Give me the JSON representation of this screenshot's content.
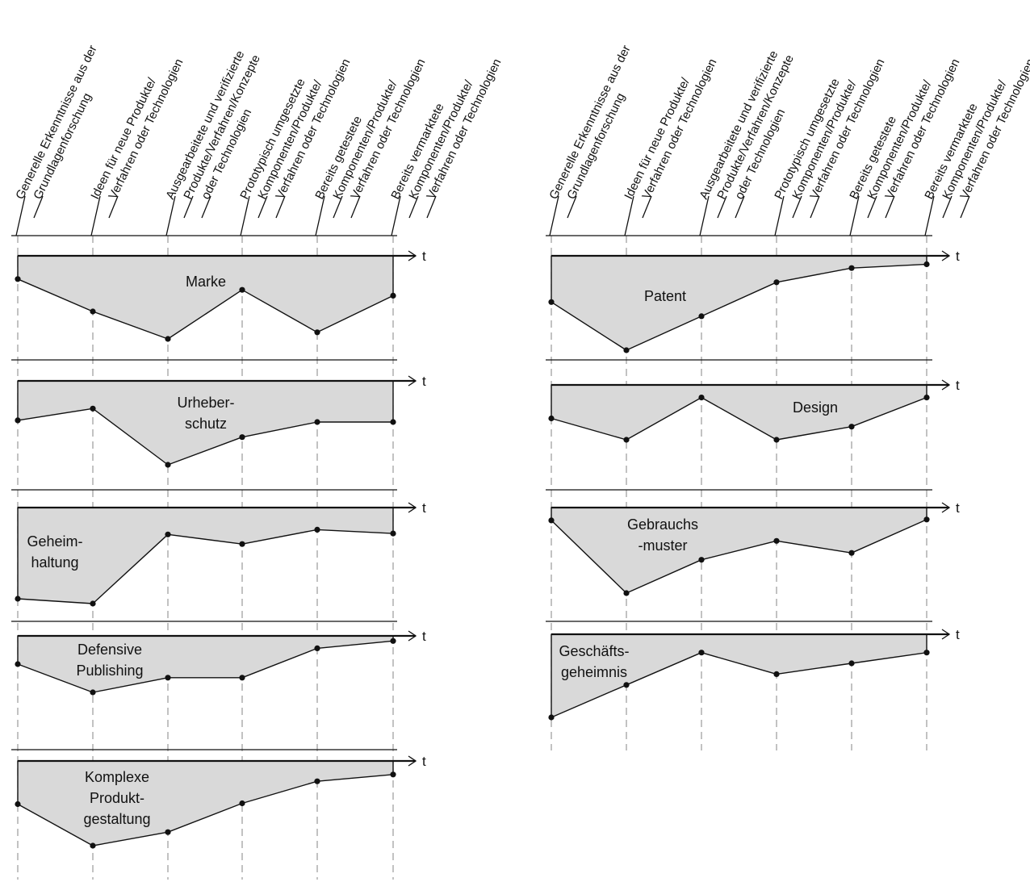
{
  "stages": [
    [
      "Generelle Erkenntnisse aus der",
      "Grundlagenforschung"
    ],
    [
      "Ideen für neue Produkte/",
      "Verfahren oder Technologien"
    ],
    [
      "Ausgearbeitete und verifizierte",
      "Produkte/Verfahren/Konzepte",
      "oder Technologien"
    ],
    [
      "Prototypisch umgesetzte",
      "Komponenten/Produkte/",
      "Verfahren oder Technologien"
    ],
    [
      "Bereits getestete",
      "Komponenten/Produkte/",
      "Verfahren oder Technologien"
    ],
    [
      "Bereits vermarktete",
      "Komponenten/Produkte/",
      "Verfahren oder Technologien"
    ]
  ],
  "axis_label": "t",
  "panels": [
    {
      "id": "marke",
      "column": "left",
      "label": [
        "Marke"
      ],
      "levels": [
        0.28,
        0.67,
        1.0,
        0.41,
        0.92,
        0.48
      ]
    },
    {
      "id": "urheberschutz",
      "column": "left",
      "label": [
        "Urheber-",
        "schutz"
      ],
      "levels": [
        0.47,
        0.33,
        1.0,
        0.67,
        0.49,
        0.49
      ]
    },
    {
      "id": "geheimhaltung",
      "column": "left",
      "label": [
        "Geheim-",
        "haltung"
      ],
      "levels": [
        0.95,
        1.0,
        0.28,
        0.38,
        0.23,
        0.27
      ]
    },
    {
      "id": "defensive-publishing",
      "column": "left",
      "label": [
        "Defensive",
        "Publishing"
      ],
      "levels": [
        0.5,
        1.0,
        0.74,
        0.74,
        0.22,
        0.09
      ]
    },
    {
      "id": "komplexe-produktgestaltung",
      "column": "left",
      "label": [
        "Komplexe",
        "Produkt-",
        "gestaltung"
      ],
      "levels": [
        0.51,
        1.0,
        0.84,
        0.5,
        0.24,
        0.16
      ]
    },
    {
      "id": "patent",
      "column": "right",
      "label": [
        "Patent"
      ],
      "levels": [
        0.49,
        1.0,
        0.64,
        0.28,
        0.13,
        0.09
      ]
    },
    {
      "id": "design",
      "column": "right",
      "label": [
        "Design"
      ],
      "levels": [
        0.61,
        1.0,
        0.23,
        1.0,
        0.76,
        0.23
      ]
    },
    {
      "id": "gebrauchsmuster",
      "column": "right",
      "label": [
        "Gebrauchs",
        "-muster"
      ],
      "levels": [
        0.15,
        1.0,
        0.61,
        0.39,
        0.53,
        0.14
      ]
    },
    {
      "id": "geschaeftsgeheimnis",
      "column": "right",
      "label": [
        "Geschäfts-",
        "geheimnis"
      ],
      "levels": [
        1.0,
        0.61,
        0.22,
        0.48,
        0.35,
        0.22
      ]
    }
  ]
}
